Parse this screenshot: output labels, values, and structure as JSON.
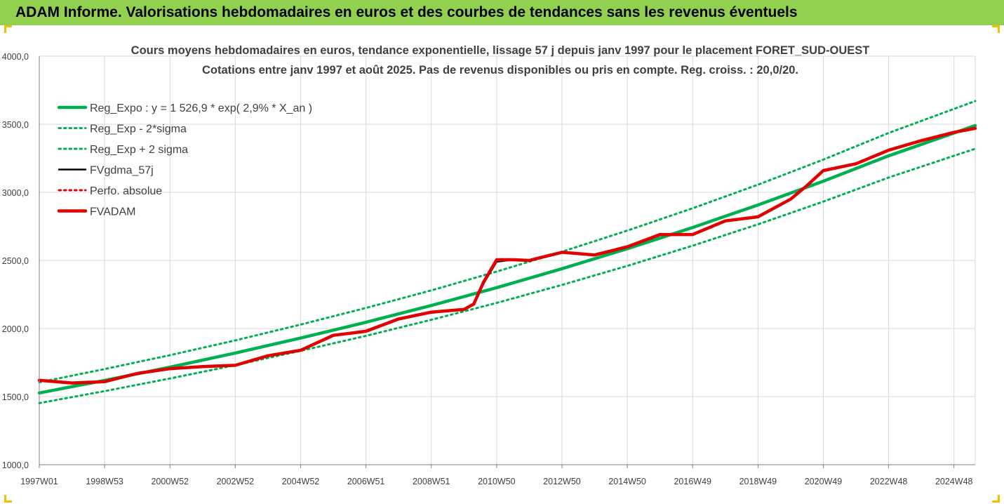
{
  "banner": {
    "title": "ADAM Informe. Valorisations hebdomadaires en euros et des courbes de tendances sans les revenus éventuels"
  },
  "colors": {
    "banner_bg": "#92d050",
    "trend_green": "#00b050",
    "adam_red": "#e00000",
    "gdma_black": "#000000",
    "grid": "#d9d9d9",
    "corner_accent": "#f2c000"
  },
  "chart_data": {
    "type": "line",
    "title": "Cours moyens hebdomadaires en euros, tendance exponentielle, lissage 57 j depuis janv 1997 pour le placement FORET_SUD-OUEST",
    "subtitle": "Cotations entre janv 1997 et août 2025. Pas de revenus disponibles ou pris en compte. Reg. croiss. : 20,0/20.",
    "xlabel": "",
    "ylabel": "",
    "x_range": [
      1997.0,
      2025.65
    ],
    "ylim": [
      1000,
      4000
    ],
    "y_ticks": [
      1000,
      1500,
      2000,
      2500,
      3000,
      3500,
      4000
    ],
    "y_tick_labels": [
      "1000,0",
      "1500,0",
      "2000,0",
      "2500,0",
      "3000,0",
      "3500,0",
      "4000,0"
    ],
    "x_ticks": [
      1997.0,
      1999.0,
      2001.0,
      2003.0,
      2005.0,
      2007.0,
      2009.0,
      2011.0,
      2013.0,
      2015.0,
      2017.0,
      2019.0,
      2021.0,
      2023.0,
      2025.0
    ],
    "x_tick_labels": [
      "1997W01",
      "1998W53",
      "2000W52",
      "2002W52",
      "2004W52",
      "2006W51",
      "2008W51",
      "2010W50",
      "2012W50",
      "2014W50",
      "2016W49",
      "2018W49",
      "2020W49",
      "2022W48",
      "2024W48"
    ],
    "grid": true,
    "legend_position": "top-left",
    "series": [
      {
        "name": "Reg_Expo : y = 1 526,9 * exp( 2,9% *  X_an )",
        "style": "solid-thick",
        "color": "#00b050",
        "x": [
          1997.0,
          1999.0,
          2001.0,
          2003.0,
          2005.0,
          2007.0,
          2009.0,
          2011.0,
          2013.0,
          2015.0,
          2017.0,
          2019.0,
          2021.0,
          2023.0,
          2025.65
        ],
        "y": [
          1527,
          1619,
          1716,
          1820,
          1930,
          2046,
          2169,
          2300,
          2439,
          2586,
          2742,
          2907,
          3082,
          3268,
          3490
        ]
      },
      {
        "name": "Reg_Exp - 2*sigma",
        "style": "dotted",
        "color": "#00b050",
        "x": [
          1997.0,
          1999.0,
          2001.0,
          2003.0,
          2005.0,
          2007.0,
          2009.0,
          2011.0,
          2013.0,
          2015.0,
          2017.0,
          2019.0,
          2021.0,
          2023.0,
          2025.65
        ],
        "y": [
          1452,
          1540,
          1633,
          1731,
          1836,
          1946,
          2064,
          2188,
          2320,
          2460,
          2608,
          2765,
          2932,
          3109,
          3320
        ]
      },
      {
        "name": "Reg_Exp + 2 sigma",
        "style": "dotted",
        "color": "#00b050",
        "x": [
          1997.0,
          1999.0,
          2001.0,
          2003.0,
          2005.0,
          2007.0,
          2009.0,
          2011.0,
          2013.0,
          2015.0,
          2017.0,
          2019.0,
          2021.0,
          2023.0,
          2025.65
        ],
        "y": [
          1605,
          1702,
          1804,
          1913,
          2029,
          2151,
          2280,
          2418,
          2564,
          2719,
          2883,
          3056,
          3240,
          3436,
          3670
        ]
      },
      {
        "name": "FVgdma_57j",
        "style": "solid",
        "color": "#000000",
        "x": [
          1997.0,
          1998.0,
          1999.0,
          2000.0,
          2001.0,
          2002.0,
          2003.0,
          2004.0,
          2005.0,
          2006.0,
          2007.0,
          2008.0,
          2009.0,
          2010.0,
          2010.3,
          2010.6,
          2011.0,
          2011.5,
          2012.0,
          2013.0,
          2014.0,
          2015.0,
          2016.0,
          2017.0,
          2018.0,
          2019.0,
          2020.0,
          2020.5,
          2021.0,
          2022.0,
          2023.0,
          2024.0,
          2025.0,
          2025.65
        ],
        "y": [
          1620,
          1600,
          1610,
          1670,
          1705,
          1720,
          1730,
          1800,
          1840,
          1950,
          1980,
          2070,
          2120,
          2140,
          2180,
          2330,
          2490,
          2505,
          2500,
          2560,
          2540,
          2600,
          2690,
          2690,
          2790,
          2820,
          2950,
          3050,
          3160,
          3210,
          3310,
          3380,
          3440,
          3470
        ]
      },
      {
        "name": "Perfo. absolue",
        "style": "dotted",
        "color": "#e00000",
        "x": [],
        "y": []
      },
      {
        "name": "FVADAM",
        "style": "solid-thick",
        "color": "#e00000",
        "x": [
          1997.0,
          1998.0,
          1999.0,
          2000.0,
          2001.0,
          2002.0,
          2003.0,
          2004.0,
          2005.0,
          2006.0,
          2007.0,
          2008.0,
          2009.0,
          2010.0,
          2010.3,
          2010.6,
          2011.0,
          2011.5,
          2012.0,
          2013.0,
          2014.0,
          2015.0,
          2016.0,
          2017.0,
          2018.0,
          2019.0,
          2020.0,
          2020.5,
          2021.0,
          2022.0,
          2023.0,
          2024.0,
          2025.0,
          2025.65
        ],
        "y": [
          1620,
          1600,
          1610,
          1670,
          1705,
          1720,
          1730,
          1800,
          1840,
          1950,
          1980,
          2070,
          2120,
          2140,
          2180,
          2340,
          2505,
          2505,
          2500,
          2560,
          2540,
          2600,
          2690,
          2690,
          2790,
          2820,
          2950,
          3050,
          3160,
          3210,
          3310,
          3380,
          3440,
          3470
        ]
      }
    ]
  }
}
